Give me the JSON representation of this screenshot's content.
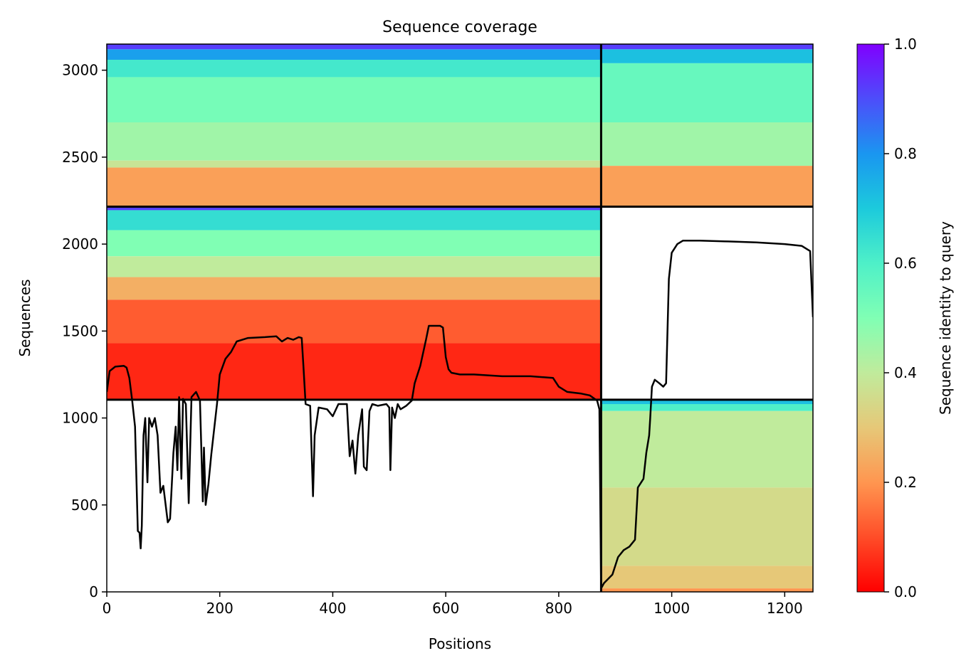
{
  "chart_data": {
    "type": "heatmap",
    "title": "Sequence coverage",
    "xlabel": "Positions",
    "ylabel": "Sequences",
    "xlim": [
      0,
      1250
    ],
    "ylim": [
      0,
      3150
    ],
    "xticks": [
      0,
      200,
      400,
      600,
      800,
      1000,
      1200
    ],
    "yticks": [
      0,
      500,
      1000,
      1500,
      2000,
      2500,
      3000
    ],
    "chain_boundary_position": 875,
    "block_boundaries_sequences": [
      1105,
      2215
    ],
    "colorbar": {
      "label": "Sequence identity to query",
      "colormap": "rainbow_r",
      "range": [
        0.0,
        1.0
      ],
      "ticks": [
        0.0,
        0.2,
        0.4,
        0.6,
        0.8,
        1.0
      ],
      "tick_labels": [
        "0.0",
        "0.2",
        "0.4",
        "0.6",
        "0.8",
        "1.0"
      ]
    },
    "coverage_blocks": [
      {
        "name": "paired",
        "x_range": [
          0,
          875
        ],
        "y_range": [
          2215,
          3150
        ],
        "bands": [
          {
            "y0": 3120,
            "y1": 3150,
            "identity": 0.92
          },
          {
            "y0": 3060,
            "y1": 3120,
            "identity": 0.78
          },
          {
            "y0": 2960,
            "y1": 3060,
            "identity": 0.62
          },
          {
            "y0": 2700,
            "y1": 2960,
            "identity": 0.52
          },
          {
            "y0": 2480,
            "y1": 2700,
            "identity": 0.45
          },
          {
            "y0": 2440,
            "y1": 2480,
            "identity": 0.38
          },
          {
            "y0": 2215,
            "y1": 2440,
            "identity": 0.22
          }
        ]
      },
      {
        "name": "paired",
        "x_range": [
          875,
          1250
        ],
        "y_range": [
          2215,
          3150
        ],
        "bands": [
          {
            "y0": 3120,
            "y1": 3150,
            "identity": 0.92
          },
          {
            "y0": 3040,
            "y1": 3120,
            "identity": 0.72
          },
          {
            "y0": 2700,
            "y1": 3040,
            "identity": 0.55
          },
          {
            "y0": 2450,
            "y1": 2700,
            "identity": 0.45
          },
          {
            "y0": 2215,
            "y1": 2450,
            "identity": 0.22
          }
        ]
      },
      {
        "name": "unpaired chain A",
        "x_range": [
          0,
          875
        ],
        "y_range": [
          1105,
          2215
        ],
        "bands": [
          {
            "y0": 2195,
            "y1": 2215,
            "identity": 0.92
          },
          {
            "y0": 2080,
            "y1": 2195,
            "identity": 0.65
          },
          {
            "y0": 1930,
            "y1": 2080,
            "identity": 0.5
          },
          {
            "y0": 1810,
            "y1": 1930,
            "identity": 0.4
          },
          {
            "y0": 1680,
            "y1": 1810,
            "identity": 0.25
          },
          {
            "y0": 1430,
            "y1": 1680,
            "identity": 0.12
          },
          {
            "y0": 1105,
            "y1": 1430,
            "identity": 0.05
          }
        ]
      },
      {
        "name": "unpaired chain B",
        "x_range": [
          875,
          1250
        ],
        "y_range": [
          0,
          1105
        ],
        "bands": [
          {
            "y0": 1080,
            "y1": 1105,
            "identity": 0.72
          },
          {
            "y0": 1040,
            "y1": 1080,
            "identity": 0.6
          },
          {
            "y0": 600,
            "y1": 1040,
            "identity": 0.4
          },
          {
            "y0": 150,
            "y1": 600,
            "identity": 0.35
          },
          {
            "y0": 20,
            "y1": 150,
            "identity": 0.3
          },
          {
            "y0": 0,
            "y1": 20,
            "identity": 0.2
          }
        ]
      }
    ],
    "coverage_line": {
      "name": "coverage",
      "color": "#000000",
      "points": [
        [
          0,
          1150
        ],
        [
          5,
          1270
        ],
        [
          15,
          1295
        ],
        [
          30,
          1300
        ],
        [
          35,
          1290
        ],
        [
          40,
          1230
        ],
        [
          45,
          1100
        ],
        [
          50,
          950
        ],
        [
          55,
          350
        ],
        [
          58,
          340
        ],
        [
          60,
          250
        ],
        [
          62,
          380
        ],
        [
          65,
          900
        ],
        [
          68,
          1000
        ],
        [
          72,
          630
        ],
        [
          75,
          1000
        ],
        [
          80,
          950
        ],
        [
          85,
          1000
        ],
        [
          90,
          900
        ],
        [
          95,
          570
        ],
        [
          100,
          610
        ],
        [
          108,
          400
        ],
        [
          112,
          420
        ],
        [
          118,
          800
        ],
        [
          122,
          950
        ],
        [
          125,
          700
        ],
        [
          128,
          1120
        ],
        [
          132,
          650
        ],
        [
          135,
          1110
        ],
        [
          140,
          1080
        ],
        [
          145,
          510
        ],
        [
          150,
          1120
        ],
        [
          158,
          1150
        ],
        [
          165,
          1100
        ],
        [
          170,
          520
        ],
        [
          172,
          830
        ],
        [
          175,
          500
        ],
        [
          180,
          620
        ],
        [
          185,
          790
        ],
        [
          195,
          1080
        ],
        [
          200,
          1250
        ],
        [
          210,
          1340
        ],
        [
          220,
          1380
        ],
        [
          230,
          1440
        ],
        [
          250,
          1460
        ],
        [
          280,
          1465
        ],
        [
          300,
          1470
        ],
        [
          310,
          1440
        ],
        [
          320,
          1460
        ],
        [
          330,
          1450
        ],
        [
          340,
          1465
        ],
        [
          345,
          1460
        ],
        [
          348,
          1300
        ],
        [
          352,
          1080
        ],
        [
          360,
          1070
        ],
        [
          365,
          550
        ],
        [
          368,
          900
        ],
        [
          375,
          1060
        ],
        [
          390,
          1050
        ],
        [
          400,
          1010
        ],
        [
          410,
          1080
        ],
        [
          425,
          1080
        ],
        [
          430,
          780
        ],
        [
          435,
          870
        ],
        [
          440,
          680
        ],
        [
          445,
          900
        ],
        [
          452,
          1050
        ],
        [
          455,
          720
        ],
        [
          460,
          700
        ],
        [
          465,
          1040
        ],
        [
          470,
          1080
        ],
        [
          480,
          1070
        ],
        [
          495,
          1080
        ],
        [
          500,
          1060
        ],
        [
          502,
          700
        ],
        [
          505,
          1060
        ],
        [
          510,
          1000
        ],
        [
          515,
          1080
        ],
        [
          520,
          1050
        ],
        [
          530,
          1070
        ],
        [
          540,
          1100
        ],
        [
          545,
          1200
        ],
        [
          555,
          1300
        ],
        [
          565,
          1450
        ],
        [
          570,
          1530
        ],
        [
          590,
          1530
        ],
        [
          595,
          1520
        ],
        [
          600,
          1350
        ],
        [
          605,
          1280
        ],
        [
          610,
          1260
        ],
        [
          625,
          1250
        ],
        [
          650,
          1250
        ],
        [
          700,
          1240
        ],
        [
          750,
          1240
        ],
        [
          790,
          1230
        ],
        [
          800,
          1180
        ],
        [
          815,
          1150
        ],
        [
          840,
          1140
        ],
        [
          855,
          1130
        ],
        [
          868,
          1100
        ],
        [
          872,
          1050
        ],
        [
          875,
          20
        ],
        [
          880,
          50
        ],
        [
          895,
          100
        ],
        [
          905,
          200
        ],
        [
          915,
          240
        ],
        [
          925,
          260
        ],
        [
          935,
          300
        ],
        [
          940,
          600
        ],
        [
          950,
          650
        ],
        [
          955,
          800
        ],
        [
          960,
          900
        ],
        [
          962,
          1000
        ],
        [
          965,
          1180
        ],
        [
          970,
          1220
        ],
        [
          978,
          1200
        ],
        [
          985,
          1180
        ],
        [
          990,
          1200
        ],
        [
          995,
          1800
        ],
        [
          1000,
          1950
        ],
        [
          1010,
          2000
        ],
        [
          1020,
          2020
        ],
        [
          1050,
          2020
        ],
        [
          1100,
          2015
        ],
        [
          1150,
          2010
        ],
        [
          1200,
          2000
        ],
        [
          1230,
          1990
        ],
        [
          1245,
          1960
        ],
        [
          1250,
          1580
        ]
      ]
    }
  }
}
